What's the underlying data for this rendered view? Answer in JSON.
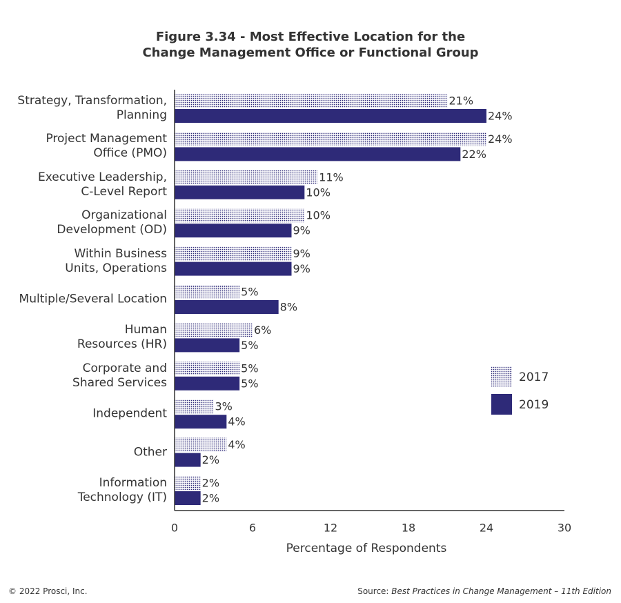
{
  "chart_data": {
    "type": "hbar",
    "title": "Figure 3.34 - Most Effective Location for the\nChange Management Office or Functional Group",
    "categories": [
      "Strategy, Transformation,\nPlanning",
      "Project Management\nOffice (PMO)",
      "Executive Leadership,\nC-Level Report",
      "Organizational\nDevelopment (OD)",
      "Within Business\nUnits, Operations",
      "Multiple/Several Location",
      "Human\nResources (HR)",
      "Corporate and\nShared Services",
      "Independent",
      "Other",
      "Information\nTechnology (IT)"
    ],
    "series": [
      {
        "name": "2017",
        "color": "#2e2a78",
        "pattern": "dots",
        "values": [
          21,
          24,
          11,
          10,
          9,
          5,
          6,
          5,
          3,
          4,
          2
        ],
        "value_labels": [
          "21%",
          "24%",
          "11%",
          "10%",
          "9%",
          "5%",
          "6%",
          "5%",
          "3%",
          "4%",
          "2%"
        ]
      },
      {
        "name": "2019",
        "color": "#2e2a78",
        "values": [
          24,
          22,
          10,
          9,
          9,
          8,
          5,
          5,
          4,
          2,
          2
        ],
        "value_labels": [
          "24%",
          "22%",
          "10%",
          "9%",
          "9%",
          "8%",
          "5%",
          "5%",
          "4%",
          "2%",
          "2%"
        ]
      }
    ],
    "xlabel": "Percentage of Respondents",
    "xlim": [
      0,
      30
    ],
    "xticks": [
      0,
      6,
      12,
      18,
      24,
      30
    ],
    "legend": "right"
  },
  "footer": {
    "copyright": "© 2022 Prosci, Inc.",
    "source_prefix": "Source:",
    "source_title": "Best Practices in Change Management – 11th Edition"
  }
}
